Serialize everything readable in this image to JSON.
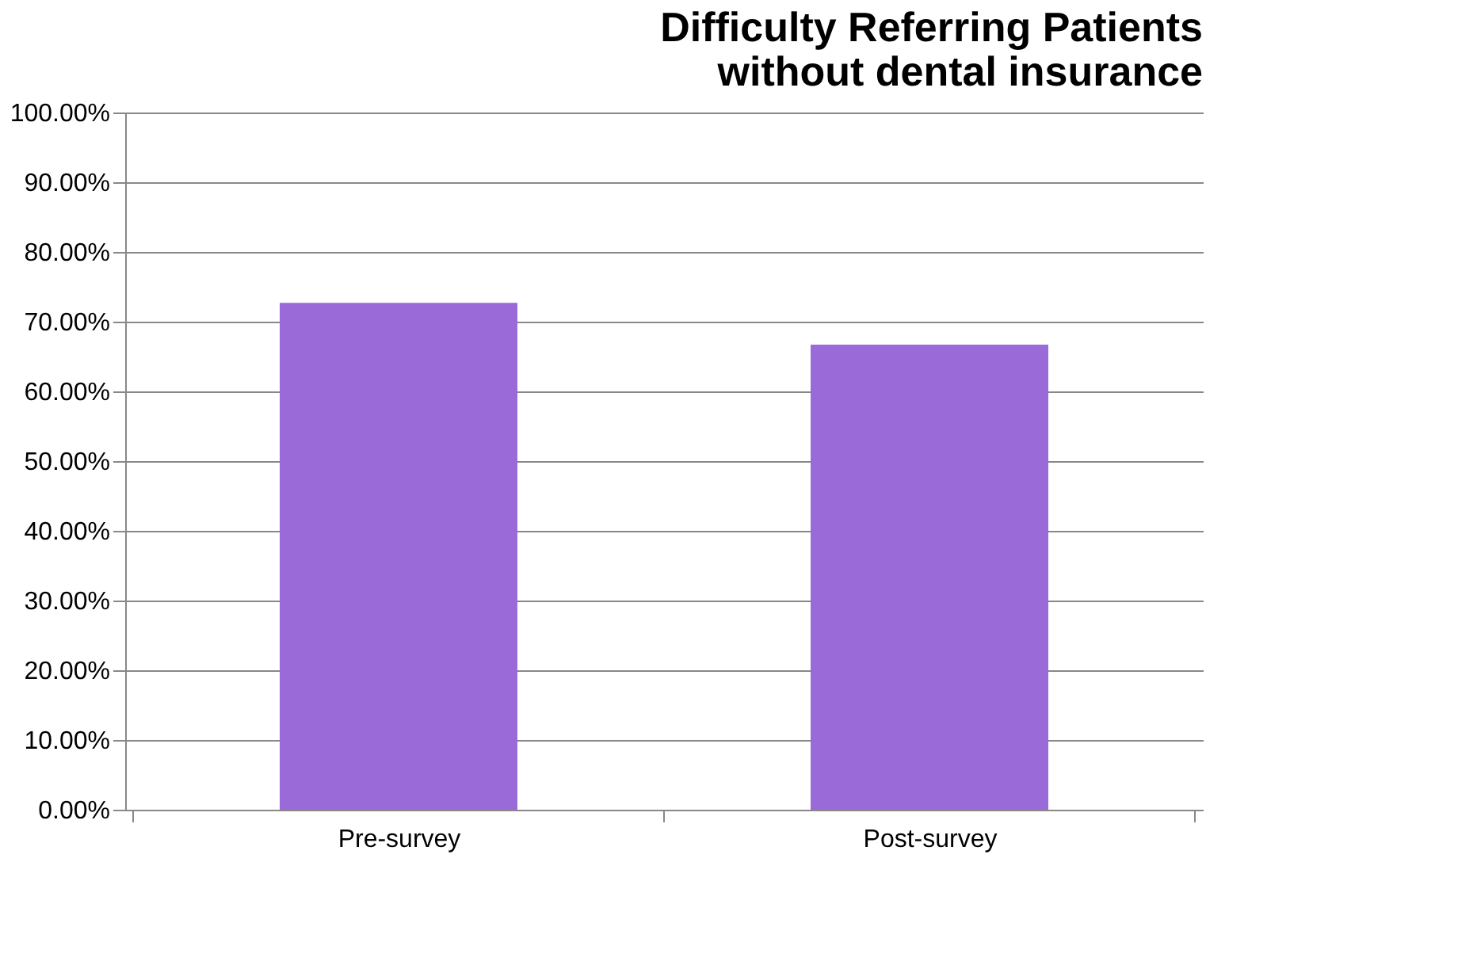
{
  "chart_data": {
    "type": "bar",
    "title": [
      "Difficulty Referring Patients",
      "without dental insurance"
    ],
    "categories": [
      "Pre-survey",
      "Post-survey"
    ],
    "values": [
      72.7,
      66.7
    ],
    "color": "#9a6ad8",
    "ylim": [
      0,
      100
    ],
    "yticks": [
      {
        "value": 0,
        "label": "0.00%"
      },
      {
        "value": 10,
        "label": "10.00%"
      },
      {
        "value": 20,
        "label": "20.00%"
      },
      {
        "value": 30,
        "label": "30.00%"
      },
      {
        "value": 40,
        "label": "40.00%"
      },
      {
        "value": 50,
        "label": "50.00%"
      },
      {
        "value": 60,
        "label": "60.00%"
      },
      {
        "value": 70,
        "label": "70.00%"
      },
      {
        "value": 80,
        "label": "80.00%"
      },
      {
        "value": 90,
        "label": "90.00%"
      },
      {
        "value": 100,
        "label": "100.00%"
      }
    ],
    "grid": "y"
  }
}
